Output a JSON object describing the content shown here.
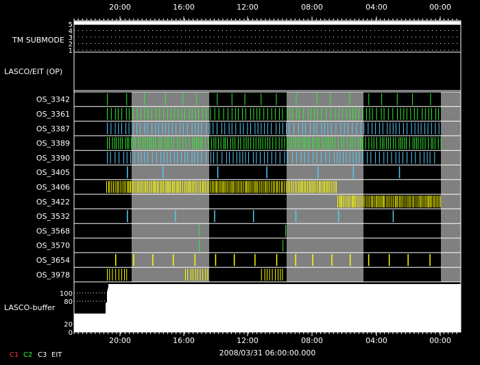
{
  "chart_data": {
    "type": "timeline",
    "title": "",
    "date_label": "2008/03/31 06:00:00.000",
    "x_ticks": [
      "20:00",
      "16:00",
      "12:00",
      "08:00",
      "04:00",
      "00:00"
    ],
    "tm_submode": {
      "label": "TM SUBMODE",
      "levels": [
        "5",
        "4",
        "3",
        "2",
        "1"
      ]
    },
    "lasco_eit_label": "LASCO/EIT (OP)",
    "buffer": {
      "label": "LASCO-buffer",
      "ticks": [
        "100",
        "80",
        "20",
        "0"
      ]
    },
    "legend": [
      {
        "name": "C1",
        "color": "#ff3030"
      },
      {
        "name": "C2",
        "color": "#30ff30"
      },
      {
        "name": "C3",
        "color": "#ffffff"
      },
      {
        "name": "EIT",
        "color": "#ffffff"
      }
    ],
    "rows": [
      {
        "label": "OS_3342",
        "color": "#33ee33",
        "pattern": "sparse"
      },
      {
        "label": "OS_3361",
        "color": "#33ee33",
        "pattern": "dense"
      },
      {
        "label": "OS_3387",
        "color": "#55ccff",
        "pattern": "dense"
      },
      {
        "label": "OS_3389",
        "color": "#33ee33",
        "pattern": "verydense"
      },
      {
        "label": "OS_3390",
        "color": "#55ccff",
        "pattern": "dense"
      },
      {
        "label": "OS_3405",
        "color": "#55ccff",
        "pattern": "few"
      },
      {
        "label": "OS_3406",
        "color": "#ffff00",
        "pattern": "block1"
      },
      {
        "label": "OS_3422",
        "color": "#ffff00",
        "pattern": "block2"
      },
      {
        "label": "OS_3532",
        "color": "#55ccff",
        "pattern": "few"
      },
      {
        "label": "OS_3568",
        "color": "#33ee33",
        "pattern": "rare"
      },
      {
        "label": "OS_3570",
        "color": "#33ee33",
        "pattern": "rare"
      },
      {
        "label": "OS_3654",
        "color": "#ffff00",
        "pattern": "periodic"
      },
      {
        "label": "OS_3978",
        "color": "#ffff00",
        "pattern": "clusters"
      }
    ]
  }
}
